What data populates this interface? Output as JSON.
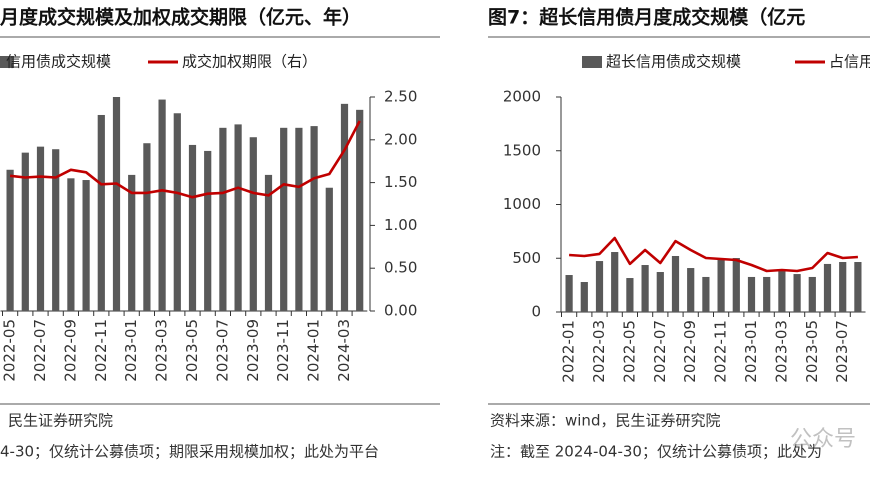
{
  "chart_data": [
    {
      "type": "bar",
      "title": "月度成交规模及加权成交期限（亿元、年）",
      "categories": [
        "2022-05",
        null,
        "2022-07",
        null,
        "2022-09",
        null,
        "2022-11",
        null,
        "2023-01",
        null,
        "2023-03",
        null,
        "2023-05",
        null,
        "2023-07",
        null,
        "2023-09",
        null,
        "2023-11",
        null,
        "2024-01",
        null,
        "2024-03",
        null
      ],
      "series": [
        {
          "name": "信用债成交规模",
          "color": "#595959",
          "type": "bar",
          "values": [
            1.65,
            1.85,
            1.92,
            1.89,
            1.55,
            1.53,
            2.29,
            2.5,
            1.59,
            1.96,
            2.47,
            2.31,
            1.94,
            1.87,
            2.14,
            2.18,
            2.03,
            1.59,
            2.14,
            2.14,
            2.16,
            1.44,
            2.42,
            2.35
          ]
        },
        {
          "name": "成交加权期限（右）",
          "color": "#c00000",
          "type": "line",
          "axis": "y2",
          "values": [
            1.58,
            1.56,
            1.57,
            1.56,
            1.65,
            1.62,
            1.48,
            1.49,
            1.38,
            1.38,
            1.41,
            1.38,
            1.33,
            1.37,
            1.38,
            1.44,
            1.38,
            1.35,
            1.48,
            1.45,
            1.55,
            1.6,
            1.88,
            2.22
          ]
        }
      ],
      "ylim": [
        0,
        2.5
      ],
      "y2lim": [
        0,
        2.5
      ],
      "y2ticks": [
        {
          "value": 0,
          "label": "0.00"
        },
        {
          "value": 0.5,
          "label": "0.50"
        },
        {
          "value": 1,
          "label": "1.00"
        },
        {
          "value": 1.5,
          "label": "1.50"
        },
        {
          "value": 2,
          "label": "2.00"
        },
        {
          "value": 2.5,
          "label": "2.50"
        }
      ],
      "notes": [
        "民生证券研究院",
        "4-30；仅统计公募债项；期限采用规模加权；此处为平台"
      ]
    },
    {
      "type": "bar",
      "title": "图7：超长信用债月度成交规模（亿元",
      "categories": [
        "2022-01",
        null,
        "2022-03",
        null,
        "2022-05",
        null,
        "2022-07",
        null,
        "2022-09",
        null,
        "2022-11",
        null,
        "2023-01",
        null,
        "2023-03",
        null,
        "2023-05",
        null,
        "2023-07",
        null
      ],
      "series": [
        {
          "name": "超长信用债成交规模",
          "color": "#595959",
          "type": "bar",
          "values": [
            344,
            279,
            474,
            558,
            316,
            437,
            372,
            521,
            409,
            326,
            493,
            502,
            326,
            326,
            381,
            353,
            326,
            447,
            465,
            465
          ]
        },
        {
          "name": "占信用",
          "color": "#c00000",
          "type": "line",
          "values": [
            530,
            521,
            540,
            688,
            447,
            577,
            456,
            660,
            577,
            502,
            493,
            484,
            437,
            381,
            391,
            381,
            409,
            549,
            502,
            512
          ]
        }
      ],
      "ylim": [
        0,
        2000
      ],
      "yticks": [
        0,
        500,
        1000,
        1500,
        2000
      ],
      "notes": [
        "资料来源：wind，民生证券研究院",
        "注：截至 2024-04-30；仅统计公募债项；此处为"
      ],
      "watermark": "公众号"
    }
  ]
}
